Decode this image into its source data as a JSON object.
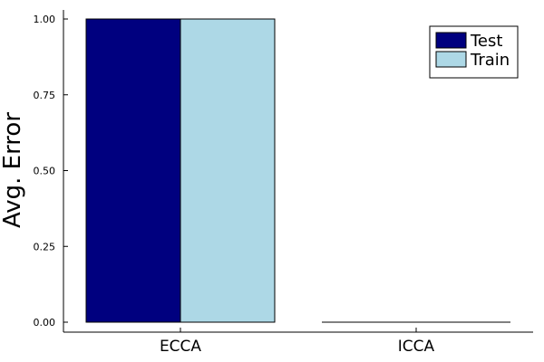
{
  "chart_data": {
    "type": "bar",
    "categories": [
      "ECCA",
      "ICCA"
    ],
    "series": [
      {
        "name": "Test",
        "values": [
          1.0,
          0.0
        ],
        "color": "#00007f"
      },
      {
        "name": "Train",
        "values": [
          1.0,
          0.0
        ],
        "color": "#add8e6"
      }
    ],
    "ylabel": "Avg. Error",
    "xlabel": "",
    "ylim": [
      0,
      1
    ],
    "yticks": [
      "0.00",
      "0.25",
      "0.50",
      "0.75",
      "1.00"
    ],
    "grid": false,
    "legend_position": "top-right"
  }
}
